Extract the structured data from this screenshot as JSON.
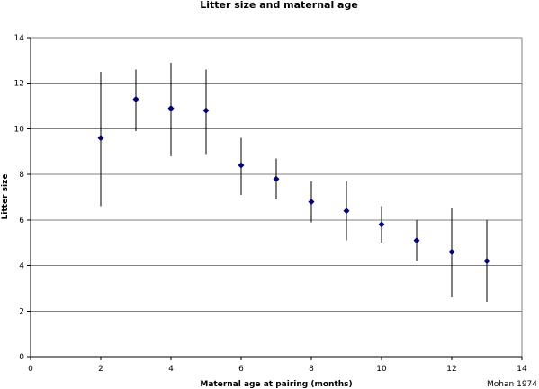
{
  "chart_data": {
    "type": "scatter",
    "title": "Litter size and maternal age",
    "xlabel": "Maternal age at pairing (months)",
    "ylabel": "Litter size",
    "credit": "Mohan 1974",
    "xlim": [
      0,
      14
    ],
    "ylim": [
      0,
      14
    ],
    "xticks": [
      0,
      2,
      4,
      6,
      8,
      10,
      12,
      14
    ],
    "yticks": [
      0,
      2,
      4,
      6,
      8,
      10,
      12,
      14
    ],
    "grid": "horizontal",
    "legend": "none",
    "marker": "diamond",
    "colors": {
      "marker": "#000080",
      "errorbar": "#000000",
      "grid": "#808080",
      "axis": "#000000"
    },
    "series": [
      {
        "x": [
          2,
          3,
          4,
          5,
          6,
          7,
          8,
          9,
          10,
          11,
          12,
          13
        ],
        "y": [
          9.6,
          11.3,
          10.9,
          10.8,
          8.4,
          7.8,
          6.8,
          6.4,
          5.8,
          5.1,
          4.6,
          4.2
        ],
        "y_low": [
          6.6,
          9.9,
          8.8,
          8.9,
          7.1,
          6.9,
          5.9,
          5.1,
          5.0,
          4.2,
          2.6,
          2.4
        ],
        "y_high": [
          12.5,
          12.6,
          12.9,
          12.6,
          9.6,
          8.7,
          7.7,
          7.7,
          6.6,
          6.0,
          6.5,
          6.0
        ]
      }
    ]
  }
}
